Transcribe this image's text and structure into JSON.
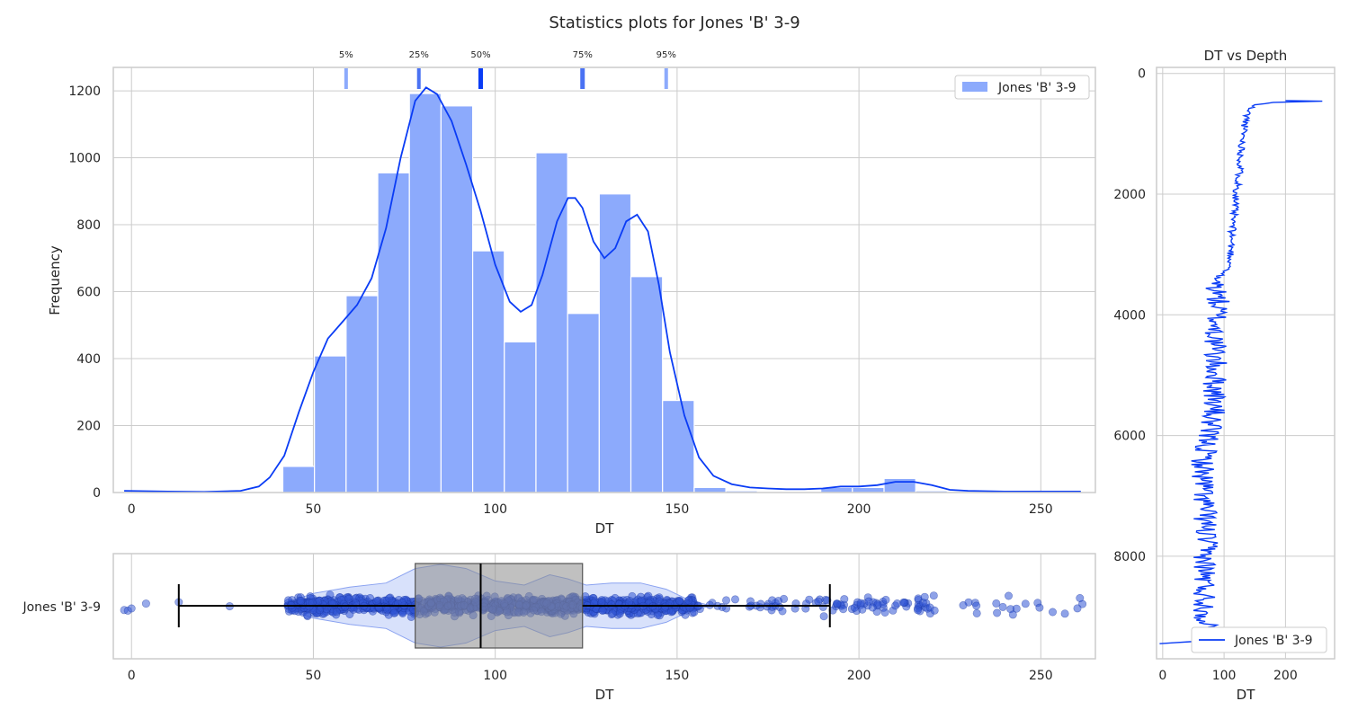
{
  "chart_data": [
    {
      "id": "histogram",
      "type": "bar",
      "title": "Statistics plots for Jones 'B' 3-9",
      "xlabel": "DT",
      "ylabel": "Frequency",
      "xlim": [
        -5,
        265
      ],
      "ylim": [
        0,
        1270
      ],
      "xticks": [
        0,
        50,
        100,
        150,
        200,
        250
      ],
      "yticks": [
        0,
        200,
        400,
        600,
        800,
        1000,
        1200
      ],
      "bin_width": 8.7,
      "bins": [
        {
          "x0": 41.6,
          "count": 78
        },
        {
          "x0": 50.3,
          "count": 408
        },
        {
          "x0": 59.0,
          "count": 588
        },
        {
          "x0": 67.7,
          "count": 955
        },
        {
          "x0": 76.4,
          "count": 1192
        },
        {
          "x0": 85.1,
          "count": 1155
        },
        {
          "x0": 93.8,
          "count": 722
        },
        {
          "x0": 102.5,
          "count": 450
        },
        {
          "x0": 111.2,
          "count": 1015
        },
        {
          "x0": 119.9,
          "count": 535
        },
        {
          "x0": 128.6,
          "count": 892
        },
        {
          "x0": 137.3,
          "count": 645
        },
        {
          "x0": 146.0,
          "count": 275
        },
        {
          "x0": 154.7,
          "count": 15
        },
        {
          "x0": 163.4,
          "count": 5
        },
        {
          "x0": 172.1,
          "count": 3
        },
        {
          "x0": 180.8,
          "count": 2
        },
        {
          "x0": 189.5,
          "count": 15
        },
        {
          "x0": 198.2,
          "count": 15
        },
        {
          "x0": 206.9,
          "count": 42
        },
        {
          "x0": 215.6,
          "count": 5
        },
        {
          "x0": 224.3,
          "count": 3
        },
        {
          "x0": 233.0,
          "count": 2
        },
        {
          "x0": 241.7,
          "count": 2
        },
        {
          "x0": 250.4,
          "count": 1
        }
      ],
      "kde": {
        "x": [
          -2,
          10,
          20,
          30,
          35,
          38,
          42,
          46,
          50,
          54,
          58,
          62,
          66,
          70,
          74,
          78,
          81,
          84,
          88,
          92,
          96,
          100,
          104,
          107,
          110,
          113,
          117,
          120,
          122,
          124,
          127,
          130,
          133,
          136,
          139,
          142,
          145,
          148,
          152,
          156,
          160,
          165,
          170,
          175,
          180,
          185,
          190,
          195,
          200,
          205,
          210,
          215,
          220,
          225,
          230,
          240,
          250,
          261
        ],
        "y": [
          5,
          3,
          2,
          5,
          18,
          45,
          110,
          240,
          360,
          460,
          510,
          560,
          640,
          790,
          1000,
          1170,
          1210,
          1190,
          1110,
          980,
          840,
          680,
          570,
          540,
          560,
          650,
          810,
          880,
          880,
          850,
          750,
          700,
          730,
          810,
          830,
          780,
          620,
          420,
          230,
          105,
          50,
          25,
          15,
          12,
          10,
          10,
          12,
          18,
          18,
          22,
          32,
          32,
          22,
          8,
          5,
          3,
          3,
          3
        ]
      },
      "percentiles": [
        {
          "label": "5%",
          "value": 59
        },
        {
          "label": "25%",
          "value": 79
        },
        {
          "label": "50%",
          "value": 96
        },
        {
          "label": "75%",
          "value": 124
        },
        {
          "label": "95%",
          "value": 147
        }
      ],
      "legend": {
        "label": "Jones 'B' 3-9",
        "position": "top-right"
      },
      "grid": true
    },
    {
      "id": "boxplot",
      "type": "box",
      "xlabel": "DT",
      "category": "Jones 'B' 3-9",
      "xlim": [
        -5,
        265
      ],
      "xticks": [
        0,
        50,
        100,
        150,
        200,
        250
      ],
      "box": {
        "whisker_low": 13,
        "q1": 78,
        "median": 96,
        "q3": 124,
        "whisker_high": 192
      },
      "violin": {
        "x": [
          42,
          50,
          60,
          70,
          78,
          85,
          92,
          100,
          108,
          115,
          120,
          125,
          132,
          140,
          147,
          153,
          158
        ],
        "half_width": [
          0.05,
          0.3,
          0.45,
          0.55,
          0.9,
          1.0,
          0.9,
          0.6,
          0.5,
          0.75,
          0.65,
          0.5,
          0.55,
          0.55,
          0.4,
          0.15,
          0.03
        ]
      },
      "points_sample_ranges": [
        {
          "from": 43,
          "to": 155,
          "count": 1100
        },
        {
          "from": 155,
          "to": 190,
          "count": 35
        },
        {
          "from": 190,
          "to": 220,
          "count": 60
        },
        {
          "from": 220,
          "to": 262,
          "count": 22
        }
      ],
      "outliers_low": [
        -2,
        -1,
        0,
        4,
        13,
        27
      ]
    },
    {
      "id": "depth-log",
      "type": "line",
      "title": "DT vs Depth",
      "xlabel": "DT",
      "xlim": [
        -10,
        280
      ],
      "ylim": [
        9700,
        -100
      ],
      "xticks": [
        0,
        100,
        200
      ],
      "yticks": [
        0,
        2000,
        4000,
        6000,
        8000
      ],
      "series": [
        {
          "name": "Jones 'B' 3-9",
          "control": [
            {
              "depth": 450,
              "dt": 200
            },
            {
              "depth": 460,
              "dt": 260
            },
            {
              "depth": 480,
              "dt": 180
            },
            {
              "depth": 520,
              "dt": 150
            },
            {
              "depth": 600,
              "dt": 140
            },
            {
              "depth": 900,
              "dt": 133
            },
            {
              "depth": 1300,
              "dt": 128
            },
            {
              "depth": 1700,
              "dt": 125
            },
            {
              "depth": 2000,
              "dt": 120
            },
            {
              "depth": 2400,
              "dt": 115
            },
            {
              "depth": 2800,
              "dt": 112
            },
            {
              "depth": 3200,
              "dt": 110
            },
            {
              "depth": 3300,
              "dt": 100
            },
            {
              "depth": 3400,
              "dt": 85
            },
            {
              "depth": 3700,
              "dt": 90
            },
            {
              "depth": 4000,
              "dt": 88
            },
            {
              "depth": 4500,
              "dt": 85
            },
            {
              "depth": 5000,
              "dt": 85
            },
            {
              "depth": 5500,
              "dt": 85
            },
            {
              "depth": 5900,
              "dt": 75
            },
            {
              "depth": 6100,
              "dt": 72
            },
            {
              "depth": 6500,
              "dt": 65
            },
            {
              "depth": 7000,
              "dt": 68
            },
            {
              "depth": 7500,
              "dt": 70
            },
            {
              "depth": 8000,
              "dt": 70
            },
            {
              "depth": 8500,
              "dt": 68
            },
            {
              "depth": 9000,
              "dt": 70
            },
            {
              "depth": 9400,
              "dt": 70
            },
            {
              "depth": 9450,
              "dt": -5
            }
          ]
        }
      ],
      "legend": {
        "label": "Jones 'B' 3-9",
        "position": "lower-right"
      },
      "grid": true
    }
  ],
  "colors": {
    "bar_fill": "#8caafc",
    "bar_edge": "#ffffff",
    "line": "#0a3cf5",
    "points": "#3255d6",
    "box_fill": "#8c8c8c",
    "violin_fill": "#c8d4fa",
    "grid": "#cccccc",
    "frame": "#cccccc",
    "text": "#262626"
  }
}
